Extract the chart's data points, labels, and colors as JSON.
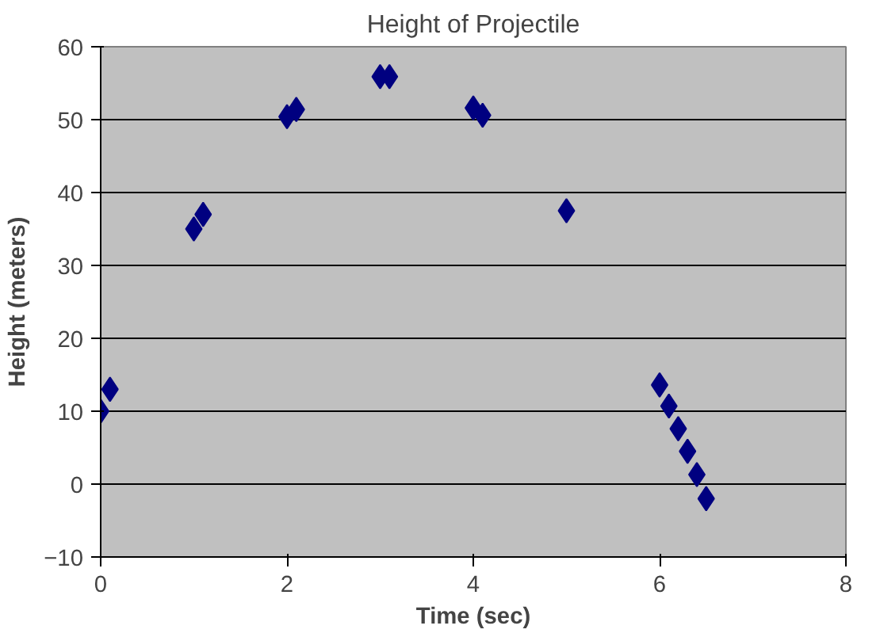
{
  "chart_data": {
    "type": "scatter",
    "title": "Height of Projectile",
    "xlabel": "Time (sec)",
    "ylabel": "Height (meters)",
    "x": [
      0,
      0.1,
      1,
      1.1,
      2,
      2.1,
      3,
      3.1,
      4,
      4.1,
      5,
      6,
      6.1,
      6.2,
      6.3,
      6.4,
      6.5
    ],
    "series": [
      {
        "color": "#000080",
        "values": [
          10,
          13,
          35,
          37,
          50.4,
          51.4,
          55.9,
          55.9,
          51.6,
          50.6,
          37.5,
          13.6,
          10.7,
          7.6,
          4.5,
          1.3,
          -2
        ]
      }
    ],
    "xlim": [
      0,
      8
    ],
    "xticks": [
      0,
      2,
      4,
      6,
      8
    ],
    "ylim": [
      -10,
      60
    ],
    "yticks": [
      -10,
      0,
      10,
      20,
      30,
      40,
      50,
      60
    ],
    "grid": "y",
    "marker": "diamond"
  }
}
